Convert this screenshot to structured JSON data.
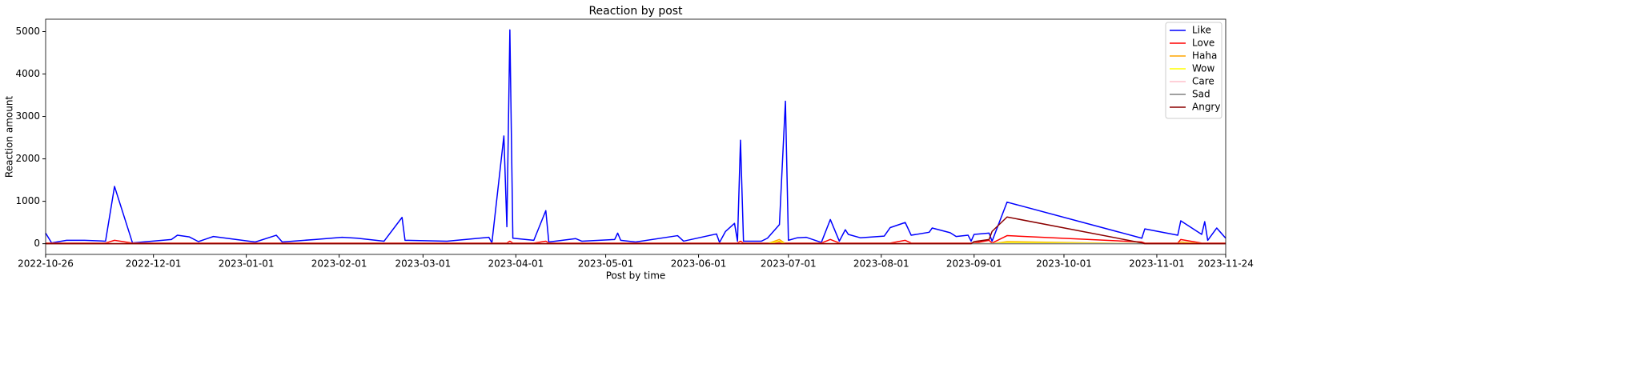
{
  "chart_data": {
    "type": "line",
    "title": "Reaction by post",
    "x_label": "Post by time",
    "y_label": "Reaction amount",
    "x": [
      "2022-10-26",
      "2022-10-28",
      "2022-11-02",
      "2022-11-08",
      "2022-11-15",
      "2022-11-18",
      "2022-11-24",
      "2022-12-07",
      "2022-12-09",
      "2022-12-13",
      "2022-12-16",
      "2022-12-21",
      "2023-01-04",
      "2023-01-11",
      "2023-01-13",
      "2023-01-24",
      "2023-02-02",
      "2023-02-07",
      "2023-02-16",
      "2023-02-22",
      "2023-02-23",
      "2023-03-09",
      "2023-03-23",
      "2023-03-24",
      "2023-03-28",
      "2023-03-29",
      "2023-03-30",
      "2023-03-31",
      "2023-04-07",
      "2023-04-11",
      "2023-04-12",
      "2023-04-21",
      "2023-04-23",
      "2023-05-04",
      "2023-05-05",
      "2023-05-06",
      "2023-05-11",
      "2023-05-25",
      "2023-05-27",
      "2023-06-07",
      "2023-06-08",
      "2023-06-10",
      "2023-06-13",
      "2023-06-14",
      "2023-06-15",
      "2023-06-16",
      "2023-06-22",
      "2023-06-24",
      "2023-06-28",
      "2023-06-30",
      "2023-07-01",
      "2023-07-04",
      "2023-07-07",
      "2023-07-12",
      "2023-07-15",
      "2023-07-18",
      "2023-07-20",
      "2023-07-21",
      "2023-07-25",
      "2023-08-02",
      "2023-08-04",
      "2023-08-09",
      "2023-08-11",
      "2023-08-17",
      "2023-08-18",
      "2023-08-24",
      "2023-08-26",
      "2023-08-30",
      "2023-08-31",
      "2023-09-01",
      "2023-09-06",
      "2023-09-07",
      "2023-09-12",
      "2023-10-27",
      "2023-10-28",
      "2023-11-08",
      "2023-11-09",
      "2023-11-16",
      "2023-11-17",
      "2023-11-18",
      "2023-11-21",
      "2023-11-24"
    ],
    "series": [
      {
        "name": "Like",
        "color": "#0000ff",
        "values": [
          250,
          20,
          80,
          80,
          60,
          1350,
          20,
          100,
          200,
          160,
          50,
          170,
          40,
          200,
          40,
          100,
          150,
          130,
          60,
          620,
          80,
          60,
          150,
          20,
          2540,
          400,
          5040,
          130,
          80,
          780,
          40,
          120,
          60,
          100,
          250,
          80,
          40,
          190,
          60,
          230,
          30,
          290,
          480,
          60,
          2440,
          60,
          60,
          130,
          450,
          3360,
          80,
          140,
          150,
          30,
          570,
          60,
          330,
          220,
          140,
          180,
          380,
          500,
          200,
          270,
          370,
          260,
          170,
          200,
          60,
          220,
          250,
          60,
          980,
          130,
          350,
          200,
          540,
          220,
          520,
          80,
          370,
          130
        ]
      },
      {
        "name": "Love",
        "color": "#ff0000",
        "values": [
          15,
          15,
          15,
          15,
          15,
          80,
          15,
          15,
          15,
          15,
          15,
          15,
          15,
          15,
          15,
          15,
          15,
          15,
          15,
          15,
          15,
          15,
          15,
          15,
          15,
          15,
          60,
          15,
          15,
          60,
          15,
          15,
          15,
          15,
          15,
          15,
          15,
          15,
          15,
          15,
          15,
          15,
          15,
          15,
          60,
          15,
          15,
          15,
          40,
          15,
          15,
          15,
          15,
          15,
          100,
          15,
          15,
          15,
          15,
          15,
          15,
          80,
          15,
          15,
          15,
          15,
          15,
          15,
          15,
          15,
          80,
          15,
          190,
          40,
          15,
          15,
          100,
          15,
          15,
          15,
          15,
          15
        ]
      },
      {
        "name": "Haha",
        "color": "#ffa500",
        "values": [
          0,
          0,
          0,
          0,
          0,
          0,
          0,
          0,
          0,
          0,
          0,
          0,
          0,
          0,
          0,
          0,
          0,
          0,
          0,
          0,
          0,
          0,
          0,
          0,
          0,
          0,
          0,
          0,
          0,
          0,
          0,
          0,
          0,
          0,
          0,
          0,
          0,
          0,
          0,
          0,
          0,
          0,
          0,
          0,
          0,
          0,
          0,
          0,
          100,
          0,
          0,
          0,
          0,
          0,
          0,
          0,
          0,
          0,
          0,
          0,
          0,
          0,
          0,
          0,
          0,
          0,
          0,
          0,
          0,
          0,
          0,
          0,
          50,
          0,
          0,
          0,
          40,
          0,
          0,
          0,
          0,
          0
        ]
      },
      {
        "name": "Wow",
        "color": "#ffff00",
        "values": [
          0,
          0,
          0,
          0,
          0,
          0,
          0,
          0,
          0,
          0,
          0,
          0,
          0,
          0,
          0,
          0,
          0,
          0,
          0,
          0,
          0,
          0,
          0,
          0,
          0,
          0,
          0,
          0,
          0,
          0,
          0,
          0,
          0,
          0,
          0,
          0,
          0,
          0,
          0,
          0,
          0,
          0,
          0,
          0,
          0,
          0,
          0,
          0,
          60,
          0,
          0,
          0,
          0,
          0,
          0,
          0,
          0,
          0,
          0,
          0,
          0,
          0,
          0,
          0,
          0,
          0,
          0,
          0,
          0,
          0,
          0,
          0,
          30,
          0,
          0,
          0,
          0,
          0,
          0,
          0,
          0,
          0
        ]
      },
      {
        "name": "Care",
        "color": "#ffc0cb",
        "values": [
          0,
          0,
          0,
          0,
          0,
          0,
          0,
          0,
          0,
          0,
          0,
          0,
          0,
          0,
          0,
          0,
          0,
          0,
          0,
          0,
          0,
          0,
          0,
          0,
          0,
          0,
          0,
          0,
          0,
          0,
          0,
          0,
          0,
          0,
          0,
          0,
          0,
          0,
          0,
          0,
          0,
          0,
          0,
          0,
          0,
          0,
          0,
          0,
          0,
          0,
          0,
          0,
          0,
          0,
          0,
          0,
          0,
          0,
          0,
          0,
          0,
          0,
          0,
          0,
          0,
          0,
          0,
          0,
          0,
          0,
          0,
          0,
          0,
          0,
          0,
          0,
          0,
          0,
          0,
          0,
          0,
          0
        ]
      },
      {
        "name": "Sad",
        "color": "#808080",
        "values": [
          0,
          0,
          0,
          0,
          0,
          0,
          0,
          0,
          0,
          0,
          0,
          0,
          0,
          0,
          0,
          0,
          0,
          0,
          0,
          0,
          0,
          0,
          0,
          0,
          0,
          0,
          0,
          0,
          0,
          0,
          0,
          0,
          0,
          0,
          0,
          0,
          0,
          0,
          0,
          0,
          0,
          0,
          0,
          0,
          0,
          0,
          0,
          0,
          0,
          0,
          0,
          0,
          0,
          0,
          0,
          0,
          0,
          0,
          0,
          0,
          0,
          0,
          0,
          0,
          0,
          0,
          0,
          0,
          0,
          0,
          0,
          0,
          0,
          0,
          0,
          0,
          0,
          0,
          0,
          0,
          0,
          0
        ]
      },
      {
        "name": "Angry",
        "color": "#8b0000",
        "values": [
          0,
          0,
          0,
          0,
          0,
          0,
          0,
          0,
          0,
          0,
          0,
          0,
          0,
          0,
          0,
          0,
          0,
          0,
          0,
          0,
          0,
          0,
          0,
          0,
          0,
          0,
          0,
          0,
          0,
          0,
          0,
          0,
          0,
          0,
          0,
          0,
          0,
          0,
          0,
          0,
          0,
          0,
          0,
          0,
          0,
          0,
          0,
          0,
          0,
          0,
          0,
          0,
          0,
          0,
          0,
          0,
          0,
          0,
          0,
          0,
          0,
          0,
          0,
          0,
          0,
          0,
          0,
          0,
          0,
          50,
          100,
          290,
          630,
          20,
          0,
          0,
          0,
          0,
          0,
          0,
          0,
          0
        ]
      }
    ],
    "xlim": [
      "2022-10-26",
      "2023-11-24"
    ],
    "xticks": [
      "2022-10-26",
      "2022-12-01",
      "2023-01-01",
      "2023-02-01",
      "2023-03-01",
      "2023-04-01",
      "2023-05-01",
      "2023-06-01",
      "2023-07-01",
      "2023-08-01",
      "2023-09-01",
      "2023-10-01",
      "2023-11-01",
      "2023-11-24"
    ],
    "ylim": [
      -252,
      5292
    ],
    "yticks": [
      0,
      1000,
      2000,
      3000,
      4000,
      5000
    ],
    "legend": "upper right"
  }
}
